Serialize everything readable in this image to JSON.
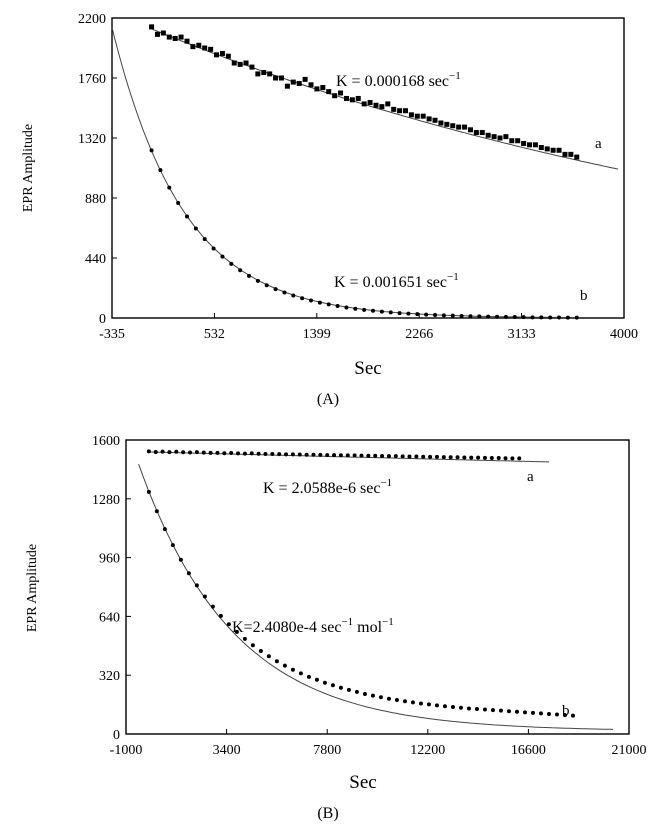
{
  "chart_data": [
    {
      "type": "scatter",
      "panel_label": "(A)",
      "xlabel": "Sec",
      "ylabel": "EPR Amplitude",
      "xlim": [
        -335,
        4000
      ],
      "ylim": [
        0,
        2200
      ],
      "xticks": [
        "-335",
        "532",
        "1399",
        "2266",
        "3133",
        "4000"
      ],
      "yticks": [
        "0",
        "440",
        "880",
        "1320",
        "1760",
        "2200"
      ],
      "grid": false,
      "series": [
        {
          "name": "a",
          "marker": "square",
          "annotation": "K = 0.000168 sec",
          "annotation_sup": "−1",
          "fit": {
            "A": 2120,
            "k": 0.000168,
            "x0": 0,
            "from": 0,
            "to": 3950
          },
          "x": [
            0,
            50,
            100,
            150,
            200,
            250,
            300,
            350,
            400,
            450,
            500,
            550,
            600,
            650,
            700,
            750,
            800,
            850,
            900,
            950,
            1000,
            1050,
            1100,
            1150,
            1200,
            1250,
            1300,
            1350,
            1400,
            1450,
            1500,
            1550,
            1600,
            1650,
            1700,
            1750,
            1800,
            1850,
            1900,
            1950,
            2000,
            2050,
            2100,
            2150,
            2200,
            2250,
            2300,
            2350,
            2400,
            2450,
            2500,
            2550,
            2600,
            2650,
            2700,
            2750,
            2800,
            2850,
            2900,
            2950,
            3000,
            3050,
            3100,
            3150,
            3200,
            3250,
            3300,
            3350,
            3400,
            3450,
            3500,
            3550,
            3600
          ],
          "y": [
            2135,
            2080,
            2090,
            2060,
            2050,
            2060,
            2030,
            1990,
            2000,
            1980,
            1970,
            1930,
            1940,
            1920,
            1870,
            1860,
            1870,
            1840,
            1790,
            1800,
            1790,
            1760,
            1760,
            1700,
            1730,
            1720,
            1750,
            1710,
            1680,
            1690,
            1660,
            1630,
            1650,
            1610,
            1600,
            1610,
            1570,
            1580,
            1560,
            1550,
            1570,
            1530,
            1520,
            1520,
            1490,
            1480,
            1480,
            1460,
            1450,
            1430,
            1420,
            1410,
            1400,
            1400,
            1380,
            1360,
            1360,
            1340,
            1330,
            1320,
            1330,
            1300,
            1300,
            1280,
            1270,
            1270,
            1250,
            1240,
            1230,
            1230,
            1200,
            1200,
            1180
          ]
        },
        {
          "name": "b",
          "marker": "circle",
          "annotation": "K = 0.001651 sec",
          "annotation_sup": "−1",
          "fit": {
            "A": 2130,
            "k": 0.001651,
            "x0": -335,
            "from": -335,
            "to": 3620
          },
          "x": [
            0,
            75,
            150,
            225,
            300,
            375,
            450,
            525,
            600,
            675,
            750,
            825,
            900,
            975,
            1050,
            1125,
            1200,
            1275,
            1350,
            1425,
            1500,
            1575,
            1650,
            1725,
            1800,
            1875,
            1950,
            2025,
            2100,
            2175,
            2250,
            2325,
            2400,
            2475,
            2550,
            2625,
            2700,
            2775,
            2850,
            2925,
            3000,
            3075,
            3150,
            3225,
            3300,
            3375,
            3450,
            3525,
            3600
          ],
          "y": [
            1229,
            1084,
            956,
            843,
            744,
            656,
            578,
            510,
            450,
            397,
            350,
            309,
            272,
            240,
            212,
            187,
            165,
            145,
            128,
            113,
            100,
            88,
            77,
            68,
            60,
            53,
            47,
            41,
            36,
            32,
            28,
            25,
            22,
            19,
            17,
            15,
            13,
            12,
            10,
            9,
            8,
            7,
            6,
            5,
            5,
            4,
            4,
            3,
            3
          ]
        }
      ]
    },
    {
      "type": "scatter",
      "panel_label": "(B)",
      "xlabel": "Sec",
      "ylabel": "EPR Amplitude",
      "xlim": [
        -1000,
        21000
      ],
      "ylim": [
        0,
        1600
      ],
      "xticks": [
        "-1000",
        "3400",
        "7800",
        "12200",
        "16600",
        "21000"
      ],
      "yticks": [
        "0",
        "320",
        "640",
        "960",
        "1280",
        "1600"
      ],
      "grid": false,
      "series": [
        {
          "name": "a",
          "marker": "circle",
          "annotation": "K = 2.0588e-6 sec",
          "annotation_sup": "−1",
          "fit": {
            "A": 1535,
            "k": 2.0588e-06,
            "x0": 0,
            "from": 0,
            "to": 17500
          },
          "x": [
            0,
            300,
            600,
            900,
            1200,
            1500,
            1800,
            2100,
            2400,
            2700,
            3000,
            3300,
            3600,
            3900,
            4200,
            4500,
            4800,
            5100,
            5400,
            5700,
            6000,
            6300,
            6600,
            6900,
            7200,
            7500,
            7800,
            8100,
            8400,
            8700,
            9000,
            9300,
            9600,
            9900,
            10200,
            10500,
            10800,
            11100,
            11400,
            11700,
            12000,
            12300,
            12600,
            12900,
            13200,
            13500,
            13800,
            14100,
            14400,
            14700,
            15000,
            15300,
            15600,
            15900,
            16200
          ],
          "y": [
            1538,
            1535,
            1537,
            1534,
            1536,
            1533,
            1532,
            1534,
            1531,
            1530,
            1530,
            1528,
            1529,
            1527,
            1526,
            1527,
            1525,
            1524,
            1524,
            1523,
            1522,
            1522,
            1521,
            1520,
            1520,
            1519,
            1518,
            1518,
            1517,
            1516,
            1516,
            1515,
            1514,
            1514,
            1513,
            1512,
            1512,
            1511,
            1510,
            1510,
            1509,
            1508,
            1508,
            1507,
            1506,
            1506,
            1505,
            1504,
            1504,
            1503,
            1502,
            1502,
            1501,
            1500,
            1500
          ]
        },
        {
          "name": "b",
          "marker": "circle",
          "annotation": "K=2.4080e-4 sec",
          "annotation_sup": "−1",
          "annotation_unit": " mol",
          "annotation_unit_sup": "−1",
          "fit": {
            "A": 1469,
            "k": 0.00024,
            "x0": -450,
            "from": -450,
            "to": 20300,
            "floor": 15
          },
          "x": [
            0,
            350,
            700,
            1050,
            1400,
            1750,
            2100,
            2450,
            2800,
            3150,
            3500,
            3850,
            4200,
            4550,
            4900,
            5250,
            5600,
            5950,
            6300,
            6650,
            7000,
            7350,
            7700,
            8050,
            8400,
            8750,
            9100,
            9450,
            9800,
            10150,
            10500,
            10850,
            11200,
            11550,
            11900,
            12250,
            12600,
            12950,
            13300,
            13650,
            14000,
            14350,
            14700,
            15050,
            15400,
            15750,
            16100,
            16450,
            16800,
            17150,
            17500,
            17850,
            18200,
            18550
          ],
          "y": [
            1318,
            1212,
            1115,
            1028,
            948,
            875,
            809,
            748,
            693,
            643,
            597,
            556,
            518,
            483,
            452,
            423,
            396,
            372,
            350,
            330,
            311,
            295,
            279,
            265,
            252,
            240,
            229,
            218,
            209,
            200,
            192,
            185,
            178,
            172,
            166,
            161,
            156,
            151,
            147,
            143,
            139,
            136,
            133,
            130,
            127,
            124,
            121,
            118,
            115,
            112,
            109,
            106,
            103,
            100
          ]
        }
      ]
    }
  ]
}
